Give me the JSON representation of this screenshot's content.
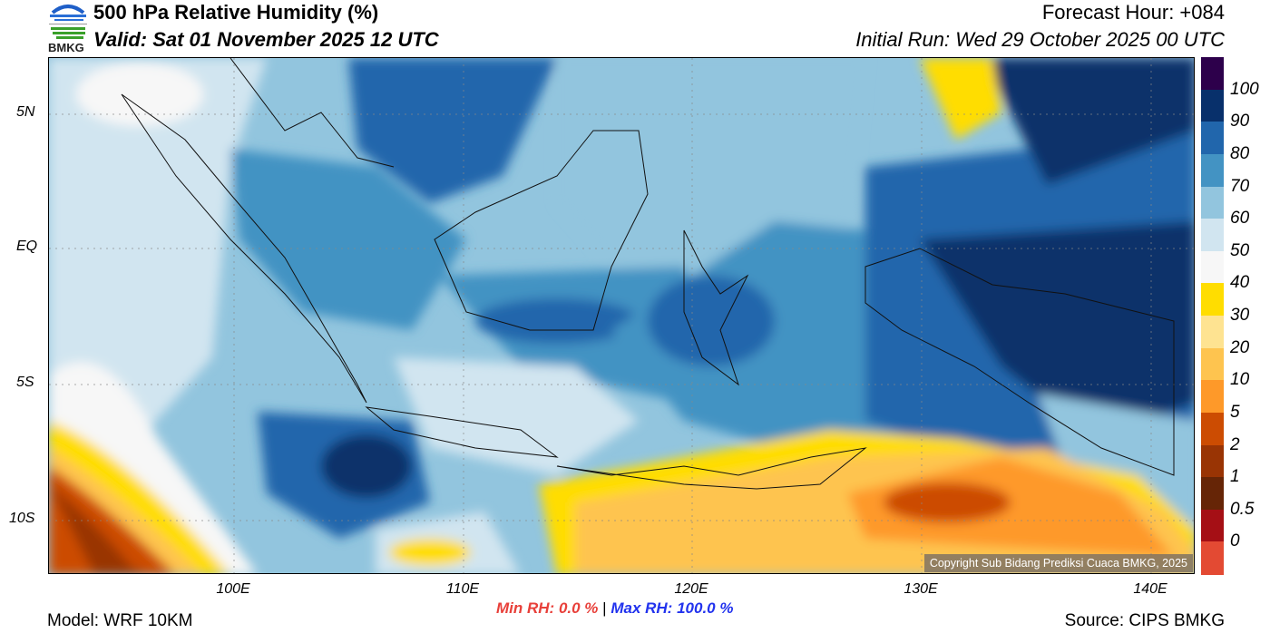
{
  "header": {
    "logo_text": "BMKG",
    "title": "500 hPa Relative Humidity (%)",
    "valid": "Valid: Sat 01 November 2025 12 UTC",
    "forecast_hour": "Forecast Hour: +084",
    "initial_run": "Initial Run: Wed 29 October 2025 00 UTC"
  },
  "map": {
    "lat_labels": [
      "5N",
      "EQ",
      "5S",
      "10S"
    ],
    "lon_labels": [
      "100E",
      "110E",
      "120E",
      "130E",
      "140E"
    ],
    "copyright": "Copyright Sub Bidang Prediksi Cuaca BMKG, 2025"
  },
  "colorbar": {
    "labels": [
      "100",
      "90",
      "80",
      "70",
      "60",
      "50",
      "40",
      "30",
      "20",
      "10",
      "5",
      "2",
      "1",
      "0.5",
      "0"
    ],
    "colors": [
      "#2d004b",
      "#08306b",
      "#2166ac",
      "#4393c3",
      "#92c5de",
      "#d1e5f0",
      "#f7f7f7",
      "#ffdd00",
      "#fee391",
      "#fec44f",
      "#fe9929",
      "#cc4c02",
      "#993404",
      "#662506",
      "#a50f15",
      "#e34a33"
    ]
  },
  "footer": {
    "min_label": "Min RH:",
    "min_value": "0.0 %",
    "separator": "|",
    "max_label": "Max RH:",
    "max_value": "100.0 %",
    "model": "Model: WRF 10KM",
    "source": "Source: CIPS BMKG"
  }
}
